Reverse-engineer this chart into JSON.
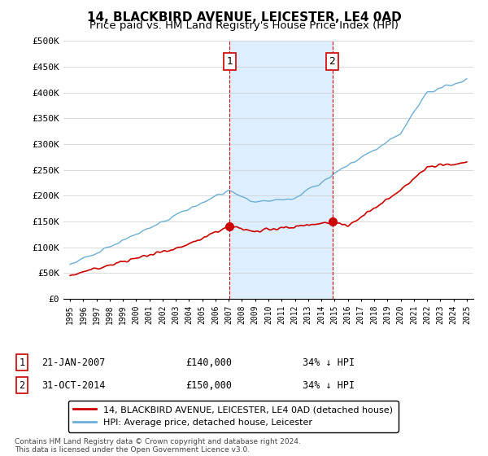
{
  "title": "14, BLACKBIRD AVENUE, LEICESTER, LE4 0AD",
  "subtitle": "Price paid vs. HM Land Registry's House Price Index (HPI)",
  "ylim": [
    0,
    500000
  ],
  "yticks": [
    0,
    50000,
    100000,
    150000,
    200000,
    250000,
    300000,
    350000,
    400000,
    450000,
    500000
  ],
  "ytick_labels": [
    "£0",
    "£50K",
    "£100K",
    "£150K",
    "£200K",
    "£250K",
    "£300K",
    "£350K",
    "£400K",
    "£450K",
    "£500K"
  ],
  "sale1_date": 2007.06,
  "sale1_price": 140000,
  "sale1_text": "21-JAN-2007",
  "sale1_price_str": "£140,000",
  "sale1_pct": "34% ↓ HPI",
  "sale2_date": 2014.83,
  "sale2_price": 150000,
  "sale2_text": "31-OCT-2014",
  "sale2_price_str": "£150,000",
  "sale2_pct": "34% ↓ HPI",
  "hpi_color": "#6baed6",
  "price_color": "#cc0000",
  "vline_color": "#cc0000",
  "bg_color": "#ddeeff",
  "legend1": "14, BLACKBIRD AVENUE, LEICESTER, LE4 0AD (detached house)",
  "legend2": "HPI: Average price, detached house, Leicester",
  "footer": "Contains HM Land Registry data © Crown copyright and database right 2024.\nThis data is licensed under the Open Government Licence v3.0.",
  "title_fontsize": 11,
  "subtitle_fontsize": 9.5,
  "tick_fontsize": 8,
  "legend_fontsize": 8
}
